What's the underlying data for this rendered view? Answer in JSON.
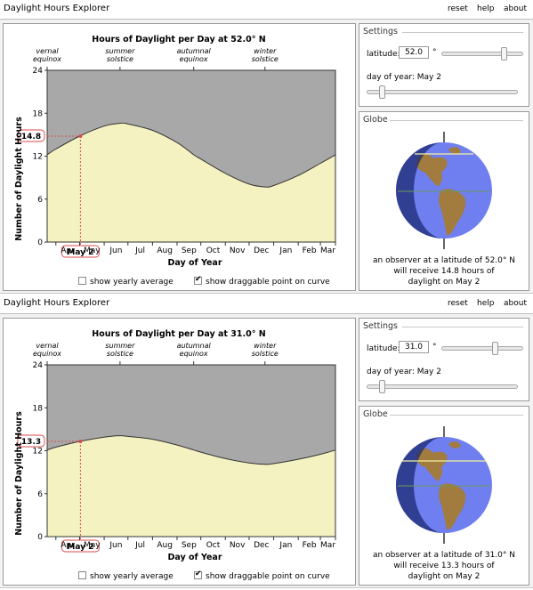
{
  "panels": [
    {
      "title": "Daylight Hours Explorer",
      "menu": [
        "reset",
        "help",
        "about"
      ],
      "chart": {
        "title": "Hours of Daylight per Day at 52.0° N",
        "top_labels": [
          [
            "vernal",
            "equinox"
          ],
          [
            "summer",
            "solstice"
          ],
          [
            "autumnal",
            "equinox"
          ],
          [
            "winter",
            "solstice"
          ]
        ],
        "ylabel": "Number of Daylight Hours",
        "xlabel": "Day of Year",
        "yticks": [
          "0",
          "6",
          "12",
          "18",
          "24"
        ],
        "xticks": [
          "Apr",
          "May",
          "Jun",
          "Jul",
          "Aug",
          "Sep",
          "Oct",
          "Nov",
          "Dec",
          "Jan",
          "Feb",
          "Mar"
        ],
        "point_value": "14.8",
        "point_date": "May 2"
      },
      "checkboxes": [
        {
          "label": "show yearly average",
          "checked": false
        },
        {
          "label": "show draggable point on curve",
          "checked": true
        }
      ],
      "settings": {
        "title": "Settings",
        "latitude_label": "latitude:",
        "latitude_value": "52.0",
        "degree_symbol": "°",
        "latitude_fraction": 0.789,
        "day_label": "day of year:",
        "day_value": "May 2",
        "day_fraction": 0.085
      },
      "globe": {
        "title": "Globe",
        "caption": [
          "an observer at a latitude of 52.0° N",
          "will receive 14.8 hours of",
          "daylight on May 2"
        ]
      }
    },
    {
      "title": "Daylight Hours Explorer",
      "menu": [
        "reset",
        "help",
        "about"
      ],
      "chart": {
        "title": "Hours of Daylight per Day at 31.0° N",
        "top_labels": [
          [
            "vernal",
            "equinox"
          ],
          [
            "summer",
            "solstice"
          ],
          [
            "autumnal",
            "equinox"
          ],
          [
            "winter",
            "solstice"
          ]
        ],
        "ylabel": "Number of Daylight Hours",
        "xlabel": "Day of Year",
        "yticks": [
          "0",
          "6",
          "12",
          "18",
          "24"
        ],
        "xticks": [
          "Apr",
          "May",
          "Jun",
          "Jul",
          "Aug",
          "Sep",
          "Oct",
          "Nov",
          "Dec",
          "Jan",
          "Feb",
          "Mar"
        ],
        "point_value": "13.3",
        "point_date": "May 2"
      },
      "checkboxes": [
        {
          "label": "show yearly average",
          "checked": false
        },
        {
          "label": "show draggable point on curve",
          "checked": true
        }
      ],
      "settings": {
        "title": "Settings",
        "latitude_label": "latitude:",
        "latitude_value": "31.0",
        "degree_symbol": "°",
        "latitude_fraction": 0.672,
        "day_label": "day of year:",
        "day_value": "May 2",
        "day_fraction": 0.085
      },
      "globe": {
        "title": "Globe",
        "caption": [
          "an observer at a latitude of 31.0° N",
          "will receive 13.3 hours of",
          "daylight on May 2"
        ]
      }
    }
  ],
  "chart_data": [
    {
      "type": "area",
      "title": "Hours of Daylight per Day at 52.0° N",
      "xlabel": "Day of Year",
      "ylabel": "Number of Daylight Hours",
      "ylim": [
        0,
        24
      ],
      "categories": [
        "Apr",
        "May",
        "Jun",
        "Jul",
        "Aug",
        "Sep",
        "Oct",
        "Nov",
        "Dec",
        "Jan",
        "Feb",
        "Mar"
      ],
      "x": [
        "Mar 21",
        "Apr 1",
        "May 1",
        "Jun 1",
        "Jun 21",
        "Jul 1",
        "Aug 1",
        "Sep 1",
        "Sep 22",
        "Oct 1",
        "Nov 1",
        "Dec 1",
        "Dec 21",
        "Jan 1",
        "Feb 1",
        "Mar 1",
        "Mar 20"
      ],
      "series": [
        {
          "name": "",
          "values": [
            12.2,
            13.0,
            14.8,
            16.2,
            16.6,
            16.5,
            15.6,
            13.9,
            12.2,
            11.6,
            9.6,
            8.1,
            7.7,
            7.9,
            9.3,
            11.0,
            12.2
          ]
        }
      ],
      "point": {
        "x": "May 2",
        "y": 14.8
      },
      "grid": false,
      "legend": "none"
    },
    {
      "type": "area",
      "title": "Hours of Daylight per Day at 31.0° N",
      "xlabel": "Day of Year",
      "ylabel": "Number of Daylight Hours",
      "ylim": [
        0,
        24
      ],
      "categories": [
        "Apr",
        "May",
        "Jun",
        "Jul",
        "Aug",
        "Sep",
        "Oct",
        "Nov",
        "Dec",
        "Jan",
        "Feb",
        "Mar"
      ],
      "x": [
        "Mar 21",
        "Apr 1",
        "May 1",
        "Jun 1",
        "Jun 21",
        "Jul 1",
        "Aug 1",
        "Sep 1",
        "Sep 22",
        "Oct 1",
        "Nov 1",
        "Dec 1",
        "Dec 21",
        "Jan 1",
        "Feb 1",
        "Mar 1",
        "Mar 20"
      ],
      "series": [
        {
          "name": "",
          "values": [
            12.1,
            12.5,
            13.3,
            13.9,
            14.1,
            14.0,
            13.6,
            12.8,
            12.1,
            11.8,
            10.9,
            10.3,
            10.1,
            10.2,
            10.8,
            11.5,
            12.1
          ]
        }
      ],
      "point": {
        "x": "May 2",
        "y": 13.3
      },
      "grid": false,
      "legend": "none"
    }
  ],
  "colors": {
    "night": "#a8a8a8",
    "day": "#f5f2c2",
    "curve": "#333333",
    "marker": "#d94b4b",
    "ocean": "#6f7ff0",
    "land": "#a27b3e",
    "shadow": "#1c2a73"
  }
}
